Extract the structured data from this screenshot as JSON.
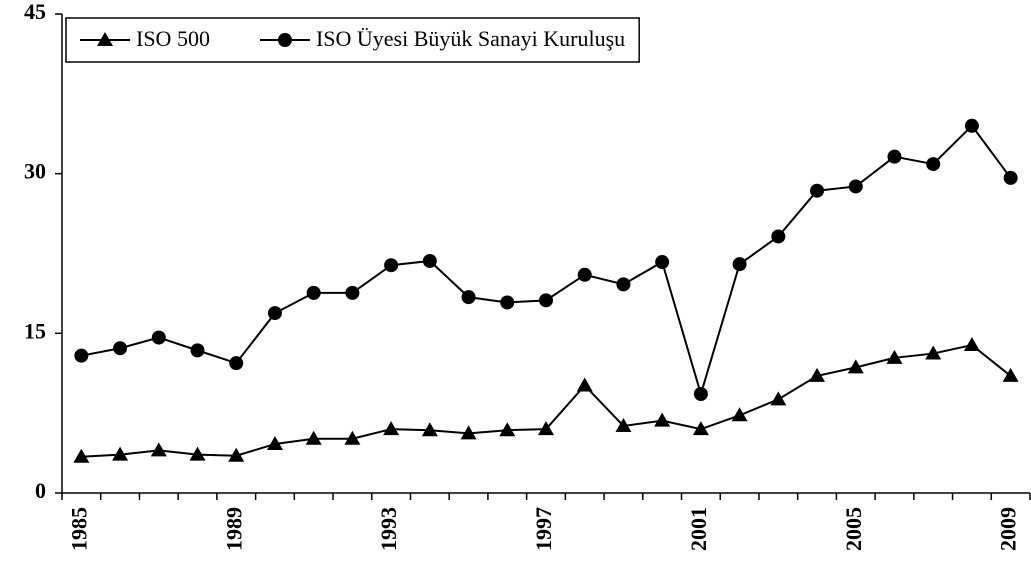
{
  "chart_data": {
    "type": "line",
    "categories": [
      "1985",
      null,
      null,
      null,
      "1989",
      null,
      null,
      null,
      "1993",
      null,
      null,
      null,
      "1997",
      null,
      null,
      null,
      "2001",
      null,
      null,
      null,
      "2005",
      null,
      null,
      null,
      "2009"
    ],
    "series": [
      {
        "name": "ISO 500",
        "color": "#000000",
        "marker": "triangle",
        "values": [
          3.4,
          3.6,
          4.0,
          3.6,
          3.5,
          4.6,
          5.1,
          5.1,
          6.0,
          5.9,
          5.6,
          5.9,
          6.0,
          10.1,
          6.3,
          6.8,
          6.0,
          7.3,
          8.8,
          11.0,
          11.8,
          12.7,
          13.1,
          13.9,
          11.0
        ]
      },
      {
        "name": "ISO Üyesi Büyük Sanayi Kuruluşu",
        "color": "#000000",
        "marker": "circle",
        "values": [
          12.9,
          13.6,
          14.6,
          13.4,
          12.2,
          16.9,
          18.8,
          18.8,
          21.4,
          21.8,
          18.4,
          17.9,
          18.1,
          20.5,
          19.6,
          21.7,
          9.3,
          21.5,
          24.1,
          28.4,
          28.8,
          31.6,
          30.9,
          34.5,
          29.6
        ]
      }
    ],
    "ylim": [
      0,
      45
    ],
    "yticks": [
      0,
      15,
      30,
      45
    ],
    "grid": false,
    "legend": "top-left"
  }
}
